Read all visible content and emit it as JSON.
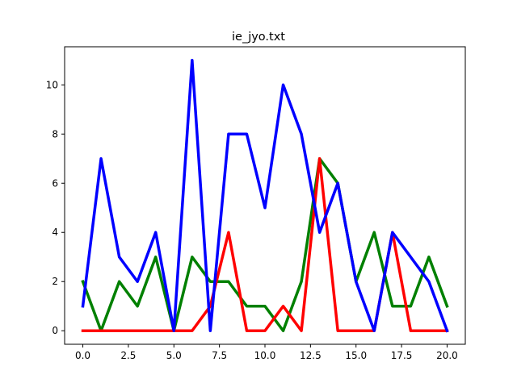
{
  "chart_data": {
    "type": "line",
    "title": "ie_jyo.txt",
    "xlabel": "",
    "ylabel": "",
    "xlim": [
      -1.0,
      21.0
    ],
    "ylim": [
      -0.55,
      11.55
    ],
    "xticks": [
      0,
      2.5,
      5,
      7.5,
      10,
      12.5,
      15,
      17.5,
      20
    ],
    "xtick_labels": [
      "0.0",
      "2.5",
      "5.0",
      "7.5",
      "10.0",
      "12.5",
      "15.0",
      "17.5",
      "20.0"
    ],
    "yticks": [
      0,
      2,
      4,
      6,
      8,
      10
    ],
    "ytick_labels": [
      "0",
      "2",
      "4",
      "6",
      "8",
      "10"
    ],
    "grid": false,
    "x": [
      0,
      1,
      2,
      3,
      4,
      5,
      6,
      7,
      8,
      9,
      10,
      11,
      12,
      13,
      14,
      15,
      16,
      17,
      18,
      19,
      20
    ],
    "series": [
      {
        "color": "#008000",
        "values": [
          2,
          0,
          2,
          1,
          3,
          0,
          3,
          2,
          2,
          1,
          1,
          0,
          2,
          7,
          6,
          2,
          4,
          1,
          1,
          3,
          1
        ]
      },
      {
        "color": "#ff0000",
        "values": [
          0,
          0,
          0,
          0,
          0,
          0,
          0,
          1,
          4,
          0,
          0,
          1,
          0,
          7,
          0,
          0,
          0,
          4,
          0,
          0,
          0
        ]
      },
      {
        "color": "#0000ff",
        "values": [
          1,
          7,
          3,
          2,
          4,
          0,
          11,
          0,
          8,
          8,
          5,
          10,
          8,
          4,
          6,
          2,
          0,
          4,
          3,
          2,
          0
        ]
      }
    ]
  }
}
